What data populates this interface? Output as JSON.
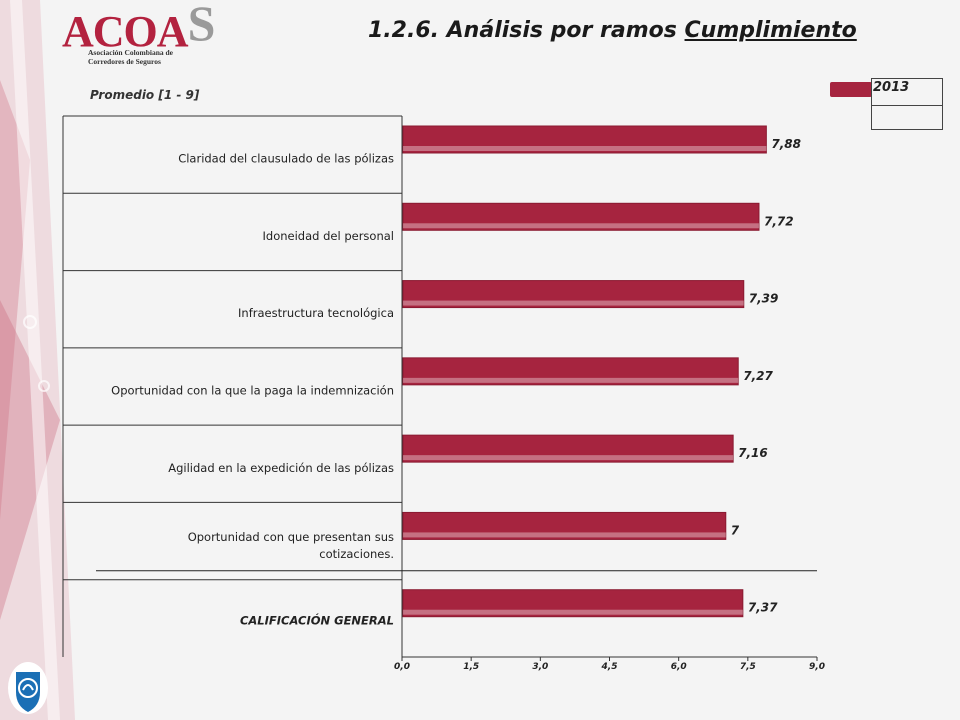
{
  "header": {
    "logo_text": "ACOA",
    "logo_s": "S",
    "logo_sub_1": "Asociación Colombiana de",
    "logo_sub_2": "Corredores de Seguros",
    "title_prefix": "1.2.6. Análisis por ramos ",
    "title_underlined": "Cumplimiento",
    "subtitle": "Promedio  [1 - 9]"
  },
  "colors": {
    "bar": "#a6243f",
    "accent": "#b3223f"
  },
  "chart_data": {
    "type": "bar",
    "orientation": "horizontal",
    "categories": [
      "Claridad del clausulado de las pólizas",
      "Idoneidad del personal",
      "Infraestructura tecnológica",
      "Oportunidad con la que la paga la indemnización",
      "Agilidad en la expedición de las pólizas",
      "Oportunidad con que presentan sus cotizaciones.",
      "CALIFICACIÓN GENERAL"
    ],
    "series": [
      {
        "name": "2013",
        "values": [
          7.88,
          7.72,
          7.39,
          7.27,
          7.16,
          7,
          7.37
        ],
        "value_labels": [
          "7,88",
          "7,72",
          "7,39",
          "7,27",
          "7,16",
          "7",
          "7,37"
        ]
      }
    ],
    "xlim": [
      0,
      9
    ],
    "x_ticks": [
      "0,0",
      "1,5",
      "3,0",
      "4,5",
      "6,0",
      "7,5",
      "9,0"
    ],
    "legend_position": "top-right",
    "grid": false
  }
}
